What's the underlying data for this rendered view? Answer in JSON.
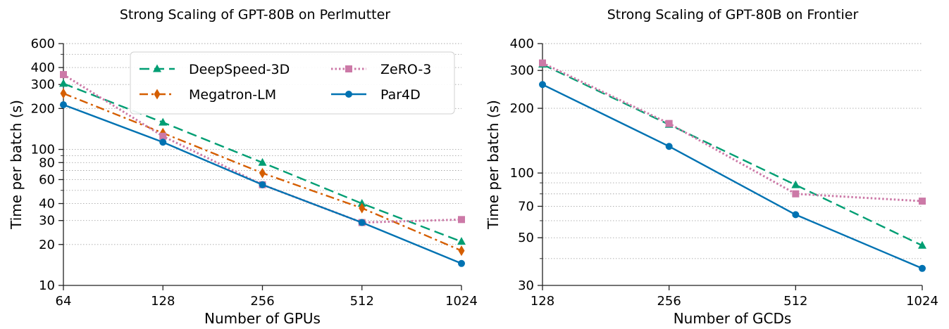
{
  "chart_data": [
    {
      "type": "line",
      "title": "Strong Scaling of GPT-80B on Perlmutter",
      "xlabel": "Number of GPUs",
      "ylabel": "Time per batch (s)",
      "xscale": "log2",
      "yscale": "log",
      "x": [
        64,
        128,
        256,
        512,
        1024
      ],
      "xlim": [
        64,
        1024
      ],
      "ylim": [
        10,
        600
      ],
      "yticks": [
        10,
        20,
        30,
        40,
        60,
        80,
        100,
        200,
        300,
        400,
        600
      ],
      "grid": "horizontal dotted",
      "legend": "top-center, 2 columns",
      "series": [
        {
          "name": "DeepSpeed-3D",
          "color": "#009E73",
          "style": "dashed",
          "marker": "triangle",
          "values": [
            305,
            158,
            80,
            40,
            21
          ]
        },
        {
          "name": "Megatron-LM",
          "color": "#D55E00",
          "style": "dashdot",
          "marker": "diamond",
          "values": [
            258,
            132,
            67,
            37,
            18
          ]
        },
        {
          "name": "ZeRO-3",
          "color": "#CC79A7",
          "style": "dotted",
          "marker": "square",
          "values": [
            355,
            125,
            55,
            29,
            30.5
          ]
        },
        {
          "name": "Par4D",
          "color": "#0072B2",
          "style": "solid",
          "marker": "circle",
          "values": [
            213,
            113,
            55,
            29,
            14.5
          ]
        }
      ]
    },
    {
      "type": "line",
      "title": "Strong Scaling of GPT-80B on Frontier",
      "xlabel": "Number of GCDs",
      "ylabel": "Time per batch (s)",
      "xscale": "log2",
      "yscale": "log",
      "x": [
        128,
        256,
        512,
        1024
      ],
      "xlim": [
        128,
        1024
      ],
      "ylim": [
        30,
        400
      ],
      "yticks": [
        30,
        50,
        70,
        100,
        200,
        300,
        400
      ],
      "grid": "horizontal dotted",
      "series": [
        {
          "name": "DeepSpeed-3D",
          "color": "#009E73",
          "style": "dashed",
          "marker": "triangle",
          "values": [
            320,
            168,
            88,
            46
          ]
        },
        {
          "name": "ZeRO-3",
          "color": "#CC79A7",
          "style": "dotted",
          "marker": "square",
          "values": [
            325,
            170,
            80,
            74
          ]
        },
        {
          "name": "Par4D",
          "color": "#0072B2",
          "style": "solid",
          "marker": "circle",
          "values": [
            258,
            133,
            64,
            36
          ]
        }
      ]
    }
  ]
}
